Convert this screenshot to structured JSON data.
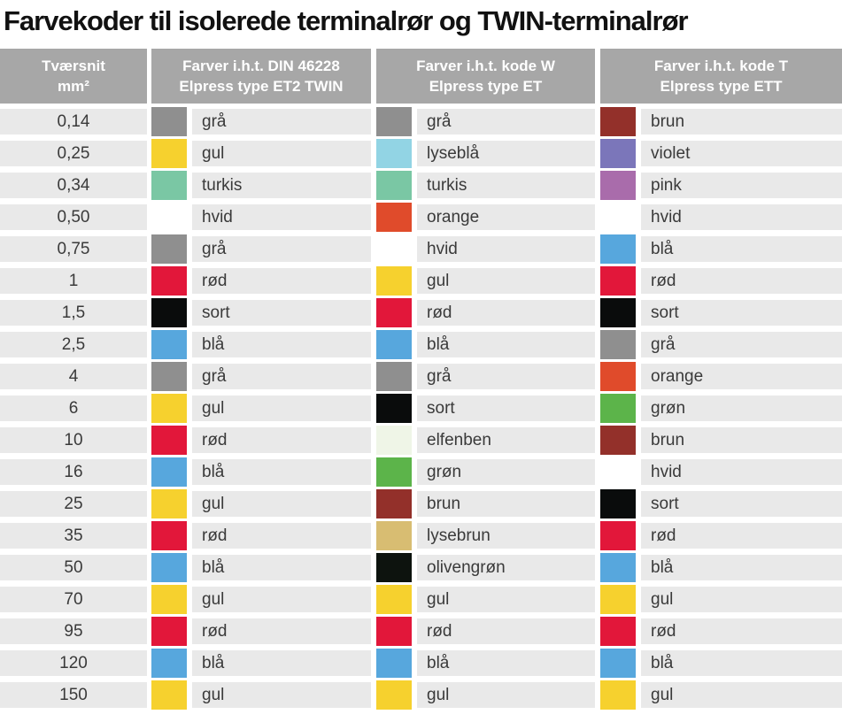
{
  "title": "Farvekoder til isolerede terminalrør og TWIN-terminalrør",
  "colors": {
    "title_color": "#111111",
    "header_bg": "#a7a7a7",
    "header_text": "#ffffff",
    "row_bg": "#e9e9e9",
    "body_text": "#3a3a3a"
  },
  "table": {
    "headers": [
      {
        "line1": "Tværsnit",
        "line2": "mm²"
      },
      {
        "line1": "Farver i.h.t. DIN 46228",
        "line2": "Elpress type ET2 TWIN"
      },
      {
        "line1": "Farver i.h.t. kode W",
        "line2": "Elpress type ET"
      },
      {
        "line1": "Farver i.h.t. kode T",
        "line2": "Elpress type ETT"
      }
    ],
    "palette": {
      "grå": "#8f8f8f",
      "gul": "#f6d12e",
      "turkis": "#7ac7a4",
      "hvid": "#ffffff",
      "rød": "#e2173a",
      "sort": "#0a0c0c",
      "blå": "#57a7dd",
      "lyseblå": "#92d4e4",
      "orange": "#e04b2b",
      "grøn": "#5cb44a",
      "elfenben": "#eff5e7",
      "brun": "#93302a",
      "lysebrun": "#d8bd72",
      "olivengrøn": "#0d130e",
      "violet": "#7b76ba",
      "pink": "#a96cab"
    },
    "rows": [
      {
        "size": "0,14",
        "din": "grå",
        "kodeW": "grå",
        "kodeT": "brun"
      },
      {
        "size": "0,25",
        "din": "gul",
        "kodeW": "lyseblå",
        "kodeT": "violet"
      },
      {
        "size": "0,34",
        "din": "turkis",
        "kodeW": "turkis",
        "kodeT": "pink"
      },
      {
        "size": "0,50",
        "din": "hvid",
        "kodeW": "orange",
        "kodeT": "hvid"
      },
      {
        "size": "0,75",
        "din": "grå",
        "kodeW": "hvid",
        "kodeT": "blå"
      },
      {
        "size": "1",
        "din": "rød",
        "kodeW": "gul",
        "kodeT": "rød"
      },
      {
        "size": "1,5",
        "din": "sort",
        "kodeW": "rød",
        "kodeT": "sort"
      },
      {
        "size": "2,5",
        "din": "blå",
        "kodeW": "blå",
        "kodeT": "grå"
      },
      {
        "size": "4",
        "din": "grå",
        "kodeW": "grå",
        "kodeT": "orange"
      },
      {
        "size": "6",
        "din": "gul",
        "kodeW": "sort",
        "kodeT": "grøn"
      },
      {
        "size": "10",
        "din": "rød",
        "kodeW": "elfenben",
        "kodeT": "brun"
      },
      {
        "size": "16",
        "din": "blå",
        "kodeW": "grøn",
        "kodeT": "hvid"
      },
      {
        "size": "25",
        "din": "gul",
        "kodeW": "brun",
        "kodeT": "sort"
      },
      {
        "size": "35",
        "din": "rød",
        "kodeW": "lysebrun",
        "kodeT": "rød"
      },
      {
        "size": "50",
        "din": "blå",
        "kodeW": "olivengrøn",
        "kodeT": "blå"
      },
      {
        "size": "70",
        "din": "gul",
        "kodeW": "gul",
        "kodeT": "gul"
      },
      {
        "size": "95",
        "din": "rød",
        "kodeW": "rød",
        "kodeT": "rød"
      },
      {
        "size": "120",
        "din": "blå",
        "kodeW": "blå",
        "kodeT": "blå"
      },
      {
        "size": "150",
        "din": "gul",
        "kodeW": "gul",
        "kodeT": "gul"
      }
    ]
  }
}
